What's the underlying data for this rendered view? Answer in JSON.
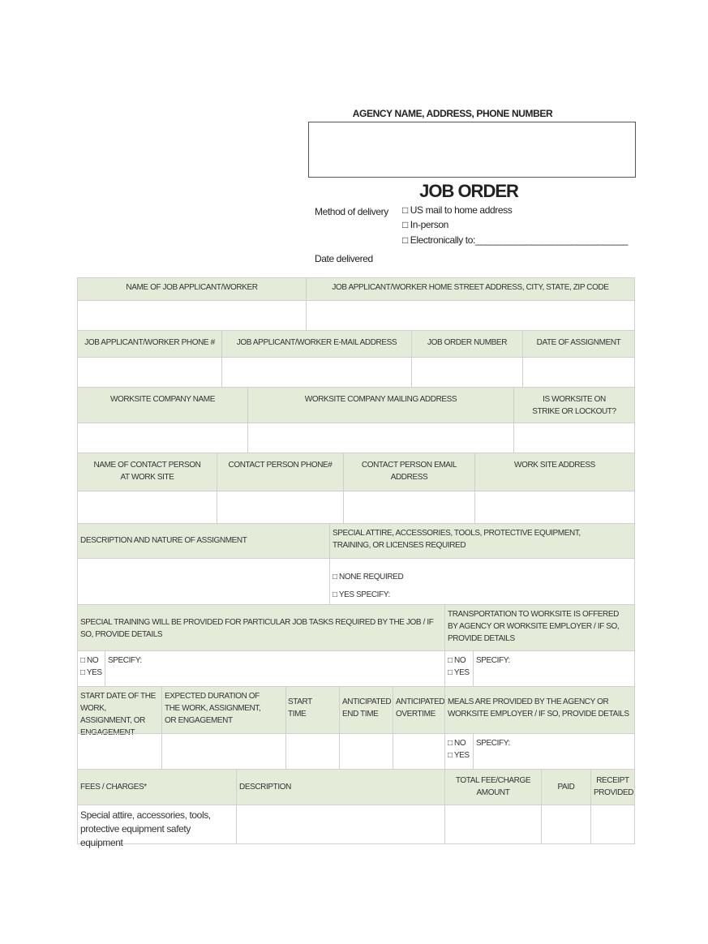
{
  "agency_header": "AGENCY NAME, ADDRESS, PHONE NUMBER",
  "title": "JOB ORDER",
  "delivery": {
    "label": "Method of delivery",
    "options": [
      "□ US mail to home address",
      "□ In-person",
      "□ Electronically to:______________________________"
    ],
    "date_label": "Date delivered"
  },
  "rows": {
    "r1": [
      "NAME OF JOB APPLICANT/WORKER",
      "JOB APPLICANT/WORKER HOME STREET ADDRESS, CITY, STATE, ZIP CODE"
    ],
    "r2": [
      "JOB APPLICANT/WORKER PHONE #",
      "JOB APPLICANT/WORKER E-MAIL ADDRESS",
      "JOB ORDER NUMBER",
      "DATE OF ASSIGNMENT"
    ],
    "r3": [
      "WORKSITE COMPANY NAME",
      "WORKSITE COMPANY MAILING ADDRESS",
      "IS WORKSITE ON STRIKE OR LOCKOUT?"
    ],
    "r4": [
      "NAME OF CONTACT PERSON AT WORK SITE",
      "CONTACT PERSON PHONE#",
      "CONTACT PERSON EMAIL ADDRESS",
      "WORK SITE ADDRESS"
    ],
    "r5": [
      "DESCRIPTION AND NATURE OF ASSIGNMENT",
      "SPECIAL ATTIRE, ACCESSORIES, TOOLS,  PROTECTIVE EQUIPMENT, TRAINING, OR LICENSES REQUIRED"
    ],
    "r5_options": [
      "□ NONE REQUIRED",
      "□ YES    SPECIFY:"
    ],
    "r6": [
      "SPECIAL TRAINING WILL BE PROVIDED FOR  PARTICULAR JOB TASKS REQUIRED BY THE JOB / IF SO, PROVIDE DETAILS",
      "TRANSPORTATION TO WORKSITE IS OFFERED BY AGENCY OR WORKSITE EMPLOYER / IF SO, PROVIDE DETAILS"
    ],
    "r7": [
      "START DATE OF THE WORK, ASSIGNMENT, OR ENGAGEMENT",
      "EXPECTED DURATION OF THE WORK, ASSIGNMENT, OR ENGAGEMENT",
      "START TIME",
      "ANTICIPATED END TIME",
      "ANTICIPATED OVERTIME",
      "MEALS ARE PROVIDED BY THE AGENCY OR WORKSITE EMPLOYER / IF SO, PROVIDE DETAILS"
    ],
    "r8": [
      "FEES / CHARGES*",
      "DESCRIPTION",
      "TOTAL FEE/CHARGE AMOUNT",
      "PAID",
      "RECEIPT PROVIDED"
    ],
    "r8_first": "Special attire, accessories, tools, protective equipment safety equipment"
  },
  "no_label": "□ NO",
  "yes_label": "□ YES",
  "specify_label": "SPECIFY:"
}
